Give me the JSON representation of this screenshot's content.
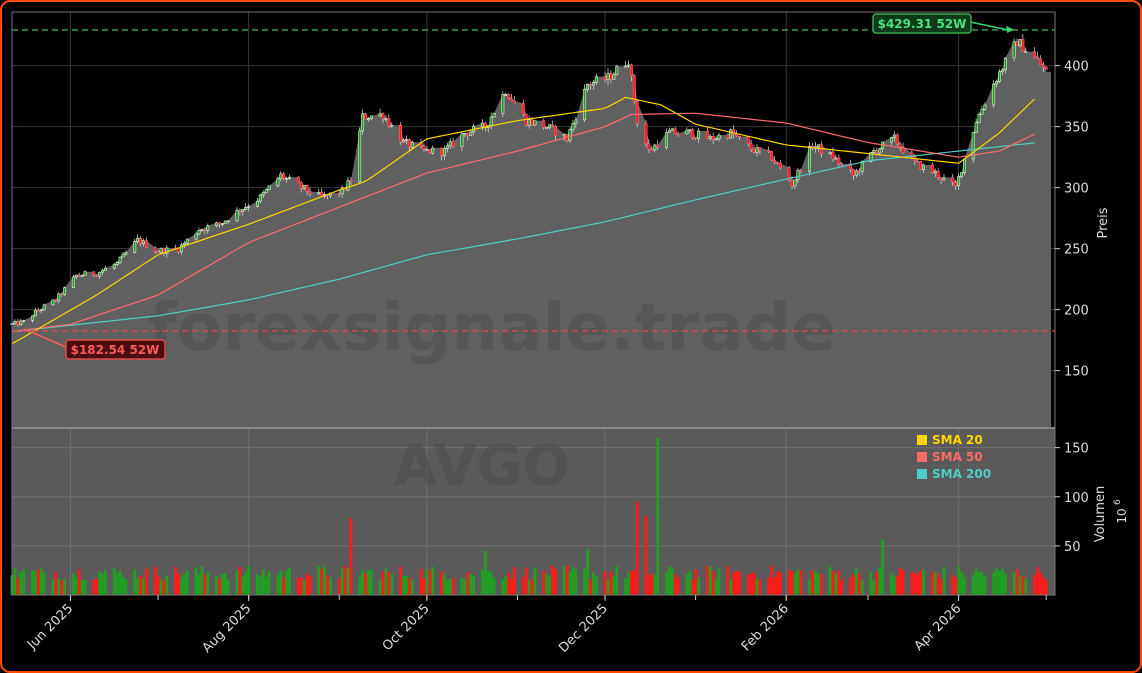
{
  "chart_data": {
    "type": "candlestick",
    "watermark_brand": "forexsignale.trade",
    "watermark_symbol": "AVGO",
    "price_axis_label": "Preis",
    "volume_axis_label": "Volumen",
    "volume_unit_base": "10",
    "volume_unit_exp": "6",
    "x_ticks": [
      {
        "date": "2025-06-01",
        "label": "Jun 2025"
      },
      {
        "date": "2025-08-01",
        "label": "Aug 2025"
      },
      {
        "date": "2025-10-01",
        "label": "Oct 2025"
      },
      {
        "date": "2025-12-01",
        "label": "Dec 2025"
      },
      {
        "date": "2026-02-01",
        "label": "Feb 2026"
      },
      {
        "date": "2026-04-01",
        "label": "Apr 2026"
      }
    ],
    "x_range": [
      "2025-05-12",
      "2026-05-04"
    ],
    "price_ylim": [
      103,
      444
    ],
    "price_ticks": [
      150,
      200,
      250,
      300,
      350,
      400
    ],
    "volume_ylim": [
      0,
      170
    ],
    "volume_ticks": [
      50,
      100,
      150
    ],
    "high_52w": {
      "value": 429.31,
      "label": "$429.31 52W",
      "date": "2026-04-20"
    },
    "low_52w": {
      "value": 182.54,
      "label": "$182.54 52W",
      "date": "2025-05-15"
    },
    "legend_placement": "upper-right of volume panel",
    "legend": [
      {
        "label": "SMA 20",
        "color": "#ffd700"
      },
      {
        "label": "SMA 50",
        "color": "#ff6b6b"
      },
      {
        "label": "SMA 200",
        "color": "#4ecdc4"
      }
    ],
    "colors": {
      "up": "#1f9e1f",
      "down": "#ff1a1a",
      "area": "#606060",
      "high_line": "#3fa84f",
      "low_line": "#e04a4a"
    },
    "close_series": [
      [
        "2025-05-12",
        188
      ],
      [
        "2025-05-16",
        190
      ],
      [
        "2025-05-20",
        198
      ],
      [
        "2025-05-27",
        208
      ],
      [
        "2025-06-03",
        228
      ],
      [
        "2025-06-10",
        230
      ],
      [
        "2025-06-17",
        238
      ],
      [
        "2025-06-24",
        257
      ],
      [
        "2025-07-01",
        248
      ],
      [
        "2025-07-08",
        250
      ],
      [
        "2025-07-15",
        266
      ],
      [
        "2025-07-22",
        270
      ],
      [
        "2025-07-29",
        282
      ],
      [
        "2025-08-05",
        292
      ],
      [
        "2025-08-12",
        310
      ],
      [
        "2025-08-19",
        300
      ],
      [
        "2025-08-26",
        292
      ],
      [
        "2025-09-02",
        297
      ],
      [
        "2025-09-05",
        306
      ],
      [
        "2025-09-09",
        358
      ],
      [
        "2025-09-16",
        360
      ],
      [
        "2025-09-23",
        337
      ],
      [
        "2025-09-30",
        330
      ],
      [
        "2025-10-07",
        330
      ],
      [
        "2025-10-14",
        345
      ],
      [
        "2025-10-21",
        350
      ],
      [
        "2025-10-28",
        380
      ],
      [
        "2025-11-04",
        355
      ],
      [
        "2025-11-11",
        350
      ],
      [
        "2025-11-18",
        340
      ],
      [
        "2025-11-25",
        385
      ],
      [
        "2025-12-02",
        390
      ],
      [
        "2025-12-09",
        405
      ],
      [
        "2025-12-12",
        355
      ],
      [
        "2025-12-16",
        330
      ],
      [
        "2025-12-23",
        345
      ],
      [
        "2025-12-30",
        345
      ],
      [
        "2026-01-06",
        340
      ],
      [
        "2026-01-13",
        345
      ],
      [
        "2026-01-20",
        332
      ],
      [
        "2026-01-27",
        325
      ],
      [
        "2026-02-03",
        303
      ],
      [
        "2026-02-10",
        335
      ],
      [
        "2026-02-17",
        325
      ],
      [
        "2026-02-24",
        310
      ],
      [
        "2026-03-03",
        330
      ],
      [
        "2026-03-10",
        340
      ],
      [
        "2026-03-17",
        320
      ],
      [
        "2026-03-24",
        312
      ],
      [
        "2026-03-31",
        300
      ],
      [
        "2026-04-07",
        355
      ],
      [
        "2026-04-14",
        390
      ],
      [
        "2026-04-21",
        420
      ],
      [
        "2026-04-28",
        404
      ],
      [
        "2026-05-01",
        395
      ]
    ],
    "sma20_series": [
      [
        "2025-05-12",
        172
      ],
      [
        "2025-06-10",
        212
      ],
      [
        "2025-07-01",
        245
      ],
      [
        "2025-08-01",
        270
      ],
      [
        "2025-09-01",
        298
      ],
      [
        "2025-09-10",
        305
      ],
      [
        "2025-10-01",
        340
      ],
      [
        "2025-11-01",
        355
      ],
      [
        "2025-12-01",
        365
      ],
      [
        "2025-12-08",
        374
      ],
      [
        "2025-12-20",
        368
      ],
      [
        "2026-01-01",
        352
      ],
      [
        "2026-02-01",
        335
      ],
      [
        "2026-03-01",
        328
      ],
      [
        "2026-04-01",
        320
      ],
      [
        "2026-04-15",
        345
      ],
      [
        "2026-04-28",
        375
      ]
    ],
    "sma50_series": [
      [
        "2025-05-12",
        182
      ],
      [
        "2025-06-01",
        188
      ],
      [
        "2025-07-01",
        212
      ],
      [
        "2025-08-01",
        255
      ],
      [
        "2025-09-01",
        284
      ],
      [
        "2025-10-01",
        312
      ],
      [
        "2025-11-01",
        330
      ],
      [
        "2025-12-01",
        350
      ],
      [
        "2025-12-10",
        360
      ],
      [
        "2026-01-01",
        361
      ],
      [
        "2026-02-01",
        353
      ],
      [
        "2026-03-01",
        337
      ],
      [
        "2026-04-01",
        325
      ],
      [
        "2026-04-15",
        330
      ],
      [
        "2026-04-28",
        345
      ]
    ],
    "sma200_series": [
      [
        "2025-05-12",
        182
      ],
      [
        "2025-07-01",
        195
      ],
      [
        "2025-08-01",
        208
      ],
      [
        "2025-09-01",
        225
      ],
      [
        "2025-10-01",
        245
      ],
      [
        "2025-11-01",
        258
      ],
      [
        "2025-12-01",
        272
      ],
      [
        "2026-01-01",
        290
      ],
      [
        "2026-02-01",
        307
      ],
      [
        "2026-03-01",
        322
      ],
      [
        "2026-04-01",
        330
      ],
      [
        "2026-04-28",
        337
      ]
    ],
    "candles_path_sketch": "dense daily candlesticks following close_series",
    "volume_spikes": [
      [
        "2025-09-05",
        78,
        "down"
      ],
      [
        "2025-12-12",
        95,
        "down"
      ],
      [
        "2025-12-15",
        80,
        "down"
      ],
      [
        "2025-12-19",
        160,
        "up"
      ],
      [
        "2026-03-06",
        57,
        "up"
      ],
      [
        "2025-11-25",
        47,
        "up"
      ],
      [
        "2025-10-21",
        45,
        "up"
      ]
    ],
    "volume_typical": [
      15,
      30
    ]
  }
}
